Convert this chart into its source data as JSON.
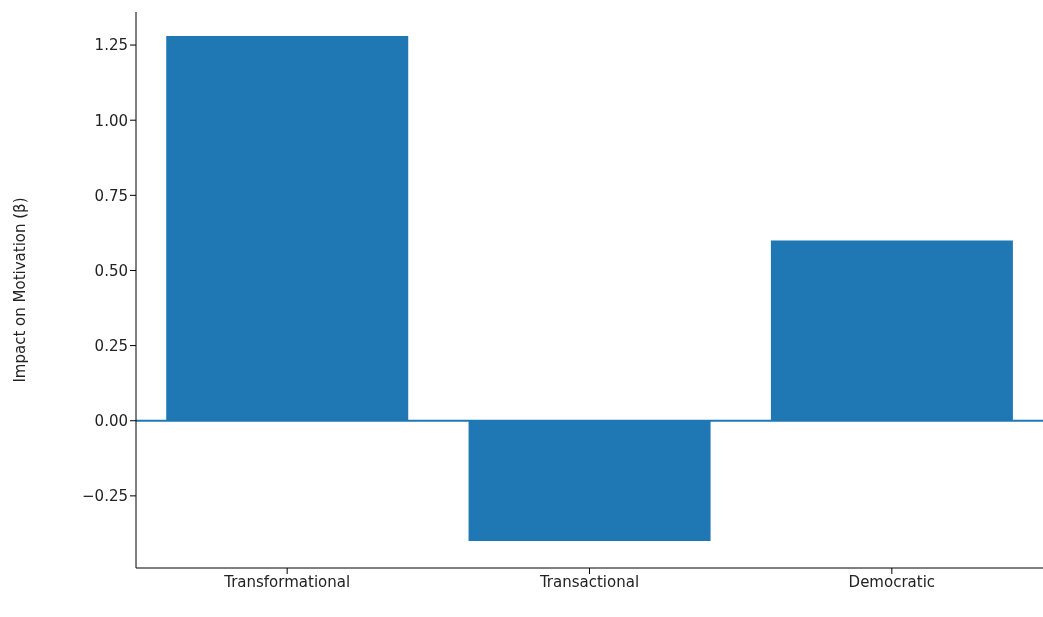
{
  "chart_data": {
    "type": "bar",
    "ylabel": "Impact on Motivation (β)",
    "categories": [
      "Transformational",
      "Transactional",
      "Democratic"
    ],
    "values": [
      1.28,
      -0.4,
      0.6
    ],
    "color": "#1f77b4",
    "ylim": [
      -0.49,
      1.36
    ],
    "yticks": [
      {
        "value": -0.25,
        "label": "−0.25"
      },
      {
        "value": 0,
        "label": "0.00"
      },
      0.25,
      {
        "value": 0.5,
        "label": "0.50"
      },
      0.75,
      {
        "value": 1,
        "label": "1.00"
      },
      1.25
    ],
    "ref_lines": [
      {
        "axis": "y",
        "value": 0,
        "color": "#1f77b4"
      }
    ],
    "grid": false,
    "legend": false
  }
}
